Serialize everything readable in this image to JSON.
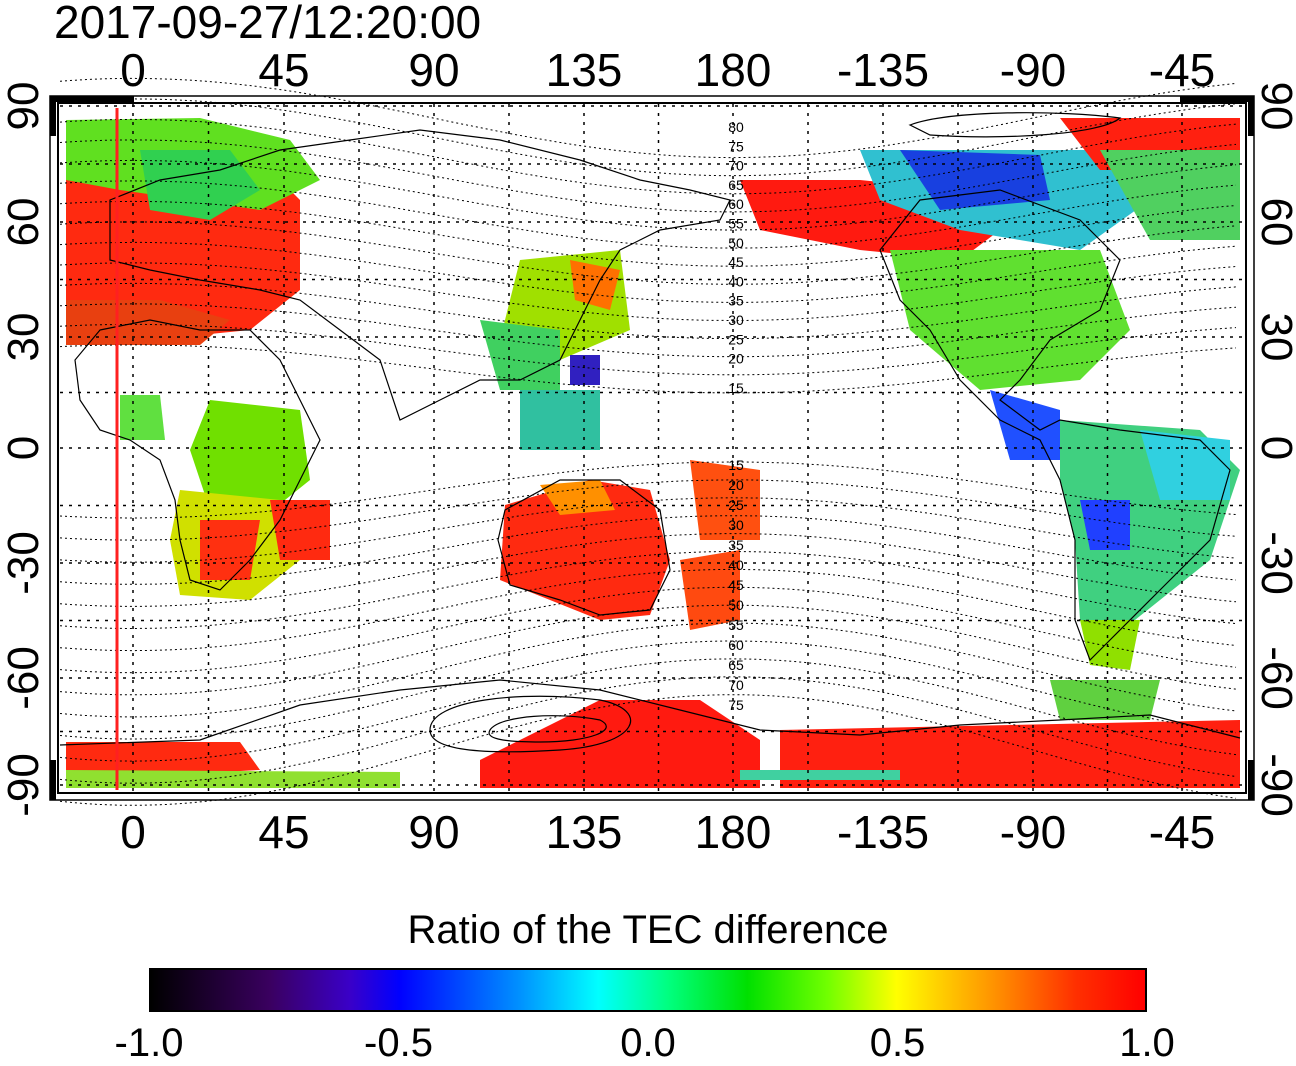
{
  "timestamp": "2017-09-27/12:20:00",
  "map": {
    "lon_ticks": [
      "0",
      "45",
      "90",
      "135",
      "180",
      "-135",
      "-90",
      "-45"
    ],
    "lat_ticks": [
      "90",
      "60",
      "30",
      "0",
      "-30",
      "-60",
      "-90"
    ],
    "mlat_labels_north": [
      "80",
      "75",
      "70",
      "65",
      "60",
      "55",
      "50",
      "45",
      "40",
      "35",
      "30",
      "25",
      "20",
      "15"
    ],
    "mlat_labels_south": [
      "15",
      "20",
      "25",
      "30",
      "35",
      "40",
      "45",
      "50",
      "55",
      "60",
      "65",
      "70",
      "75"
    ],
    "grid": true
  },
  "colorbar": {
    "title": "Ratio of the TEC difference",
    "ticks": [
      "-1.0",
      "-0.5",
      "0.0",
      "0.5",
      "1.0"
    ],
    "range": [
      -1.0,
      1.0
    ]
  },
  "colors": {
    "high": "#ff0000",
    "mid_high": "#ffff00",
    "zero": "#00ff00",
    "mid_low": "#00ffff",
    "low": "#0000ff",
    "min": "#000000",
    "terminator": "#ff2020"
  }
}
